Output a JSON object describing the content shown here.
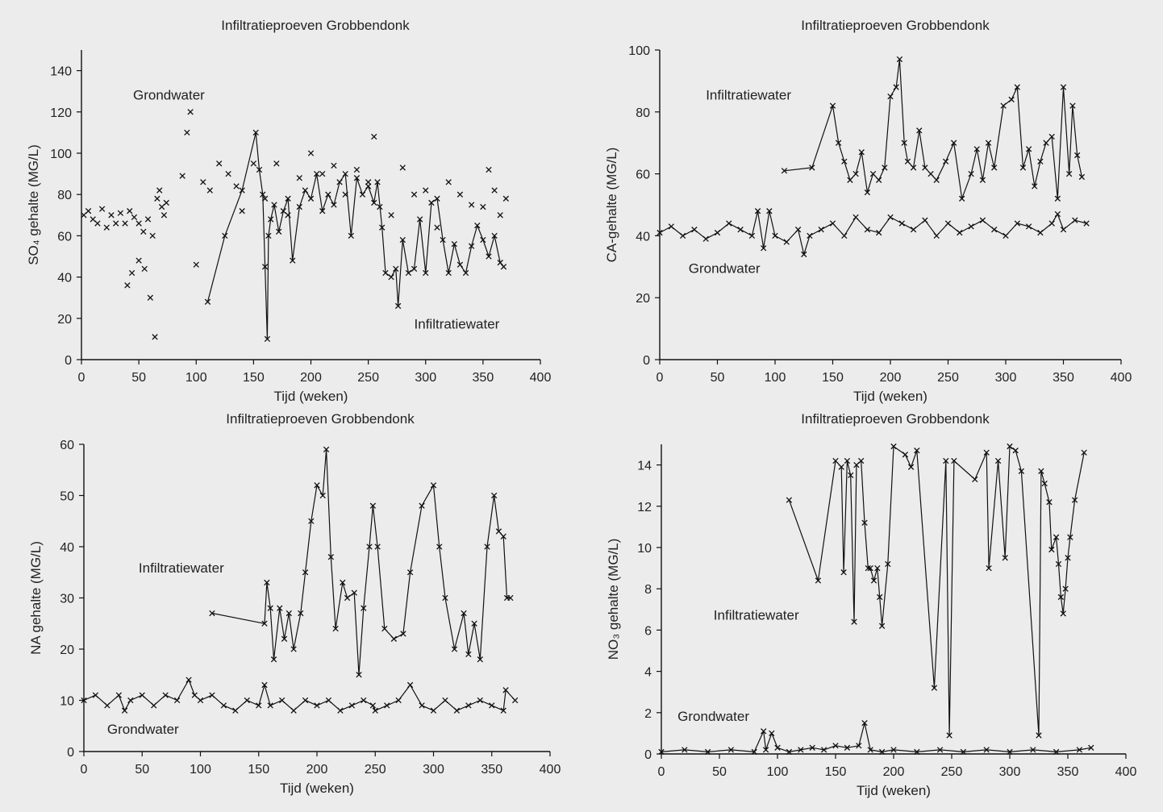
{
  "figure": {
    "background": "#ececec",
    "ink": "#111111"
  },
  "chart_data": [
    {
      "id": "so4",
      "type": "line",
      "title": "Infiltratieproeven Grobbendonk",
      "xlabel": "Tijd (weken)",
      "ylabel": "SO₄ gehalte (MG/L)",
      "xlim": [
        0,
        400
      ],
      "ylim": [
        0,
        150
      ],
      "xticks": [
        0,
        50,
        100,
        150,
        200,
        250,
        300,
        350,
        400
      ],
      "yticks": [
        0,
        20,
        40,
        60,
        80,
        100,
        120,
        140
      ],
      "grid": false,
      "annotations": [
        {
          "text": "Grondwater",
          "x": 45,
          "y": 126
        },
        {
          "text": "Infiltratiewater",
          "x": 290,
          "y": 15
        }
      ],
      "series": [
        {
          "label": "Grondwater",
          "style": "markers",
          "x": [
            2,
            6,
            10,
            14,
            18,
            22,
            26,
            30,
            34,
            38,
            42,
            46,
            50,
            54,
            58,
            62,
            66,
            70,
            74,
            40,
            44,
            50,
            55,
            60,
            64,
            68,
            72,
            88,
            92,
            95,
            100,
            106,
            112,
            120,
            128,
            135,
            140,
            150,
            160,
            170,
            180,
            190,
            200,
            210,
            220,
            230,
            240,
            250,
            255,
            260,
            270,
            280,
            290,
            300,
            310,
            320,
            330,
            340,
            350,
            355,
            360,
            365,
            370
          ],
          "y": [
            70,
            72,
            68,
            66,
            73,
            64,
            70,
            66,
            71,
            66,
            72,
            69,
            66,
            62,
            68,
            60,
            78,
            74,
            76,
            36,
            42,
            48,
            44,
            30,
            11,
            82,
            70,
            89,
            110,
            120,
            46,
            86,
            82,
            95,
            90,
            84,
            72,
            95,
            78,
            95,
            70,
            88,
            100,
            90,
            94,
            80,
            92,
            86,
            108,
            74,
            70,
            93,
            80,
            82,
            64,
            86,
            80,
            75,
            74,
            92,
            82,
            70,
            78
          ]
        },
        {
          "label": "Infiltratiewater",
          "style": "line",
          "x": [
            110,
            125,
            140,
            152,
            155,
            158,
            160,
            162,
            163,
            165,
            168,
            172,
            176,
            180,
            184,
            190,
            195,
            200,
            205,
            210,
            215,
            220,
            225,
            230,
            235,
            240,
            245,
            250,
            255,
            258,
            262,
            265,
            270,
            274,
            276,
            280,
            285,
            290,
            295,
            300,
            305,
            310,
            315,
            320,
            325,
            330,
            335,
            340,
            345,
            350,
            355,
            360,
            365,
            368
          ],
          "y": [
            28,
            60,
            82,
            110,
            92,
            80,
            45,
            10,
            60,
            68,
            75,
            62,
            72,
            78,
            48,
            74,
            82,
            78,
            90,
            72,
            80,
            75,
            86,
            90,
            60,
            88,
            80,
            84,
            76,
            86,
            64,
            42,
            40,
            44,
            26,
            58,
            42,
            44,
            68,
            42,
            76,
            78,
            58,
            42,
            56,
            46,
            42,
            55,
            65,
            58,
            50,
            60,
            47,
            45
          ]
        }
      ]
    },
    {
      "id": "ca",
      "type": "line",
      "title": "Infiltratieproeven Grobbendonk",
      "xlabel": "Tijd (weken)",
      "ylabel": "CA-gehalte (MG/L)",
      "xlim": [
        0,
        400
      ],
      "ylim": [
        0,
        100
      ],
      "xticks": [
        0,
        50,
        100,
        150,
        200,
        250,
        300,
        350,
        400
      ],
      "yticks": [
        0,
        20,
        40,
        60,
        80,
        100
      ],
      "grid": false,
      "annotations": [
        {
          "text": "Infiltratiewater",
          "x": 40,
          "y": 84
        },
        {
          "text": "Grondwater",
          "x": 25,
          "y": 28
        }
      ],
      "series": [
        {
          "label": "Infiltratiewater",
          "style": "line",
          "x": [
            108,
            132,
            150,
            155,
            160,
            165,
            170,
            175,
            180,
            185,
            190,
            195,
            200,
            205,
            208,
            212,
            215,
            220,
            225,
            230,
            235,
            240,
            248,
            255,
            262,
            270,
            275,
            280,
            285,
            290,
            298,
            305,
            310,
            315,
            320,
            325,
            330,
            335,
            340,
            345,
            350,
            355,
            358,
            362,
            366
          ],
          "y": [
            61,
            62,
            82,
            70,
            64,
            58,
            60,
            67,
            54,
            60,
            58,
            62,
            85,
            88,
            97,
            70,
            64,
            62,
            74,
            62,
            60,
            58,
            64,
            70,
            52,
            60,
            68,
            58,
            70,
            62,
            82,
            84,
            88,
            62,
            68,
            56,
            64,
            70,
            72,
            52,
            88,
            60,
            82,
            66,
            59
          ]
        },
        {
          "label": "Grondwater",
          "style": "line",
          "x": [
            0,
            10,
            20,
            30,
            40,
            50,
            60,
            70,
            80,
            85,
            90,
            95,
            100,
            110,
            120,
            125,
            130,
            140,
            150,
            160,
            170,
            180,
            190,
            200,
            210,
            220,
            230,
            240,
            250,
            260,
            270,
            280,
            290,
            300,
            310,
            320,
            330,
            340,
            345,
            350,
            360,
            370
          ],
          "y": [
            41,
            43,
            40,
            42,
            39,
            41,
            44,
            42,
            40,
            48,
            36,
            48,
            40,
            38,
            42,
            34,
            40,
            42,
            44,
            40,
            46,
            42,
            41,
            46,
            44,
            42,
            45,
            40,
            44,
            41,
            43,
            45,
            42,
            40,
            44,
            43,
            41,
            44,
            47,
            42,
            45,
            44
          ]
        }
      ]
    },
    {
      "id": "na",
      "type": "line",
      "title": "Infiltratieproeven Grobbendonk",
      "xlabel": "Tijd (weken)",
      "ylabel": "NA gehalte (MG/L)",
      "xlim": [
        0,
        400
      ],
      "ylim": [
        0,
        60
      ],
      "xticks": [
        0,
        50,
        100,
        150,
        200,
        250,
        300,
        350,
        400
      ],
      "yticks": [
        0,
        10,
        20,
        30,
        40,
        50,
        60
      ],
      "grid": false,
      "annotations": [
        {
          "text": "Infiltratiewater",
          "x": 47,
          "y": 35
        },
        {
          "text": "Grondwater",
          "x": 20,
          "y": 3.5
        }
      ],
      "series": [
        {
          "label": "Infiltratiewater",
          "style": "line",
          "x": [
            110,
            155,
            157,
            160,
            163,
            168,
            172,
            176,
            180,
            186,
            190,
            195,
            200,
            205,
            208,
            212,
            216,
            222,
            226,
            232,
            236,
            240,
            245,
            248,
            252,
            258,
            266,
            274,
            280,
            290,
            300,
            305,
            310,
            318,
            326,
            330,
            335,
            340,
            346,
            352,
            356,
            360,
            363,
            366
          ],
          "y": [
            27,
            25,
            33,
            28,
            18,
            28,
            22,
            27,
            20,
            27,
            35,
            45,
            52,
            50,
            59,
            38,
            24,
            33,
            30,
            31,
            15,
            28,
            40,
            48,
            40,
            24,
            22,
            23,
            35,
            48,
            52,
            40,
            30,
            20,
            27,
            19,
            25,
            18,
            40,
            50,
            43,
            42,
            30,
            30
          ]
        },
        {
          "label": "Grondwater",
          "style": "line",
          "x": [
            0,
            10,
            20,
            30,
            35,
            40,
            50,
            60,
            70,
            80,
            90,
            95,
            100,
            110,
            120,
            130,
            140,
            150,
            155,
            160,
            170,
            180,
            190,
            200,
            210,
            220,
            230,
            240,
            248,
            250,
            260,
            270,
            280,
            290,
            300,
            310,
            320,
            330,
            340,
            350,
            360,
            362,
            370
          ],
          "y": [
            10,
            11,
            9,
            11,
            8,
            10,
            11,
            9,
            11,
            10,
            14,
            11,
            10,
            11,
            9,
            8,
            10,
            9,
            13,
            9,
            10,
            8,
            10,
            9,
            10,
            8,
            9,
            10,
            9,
            8,
            9,
            10,
            13,
            9,
            8,
            10,
            8,
            9,
            10,
            9,
            8,
            12,
            10
          ]
        }
      ]
    },
    {
      "id": "no3",
      "type": "line",
      "title": "Infiltratieproeven Grobbendonk",
      "xlabel": "Tijd (weken)",
      "ylabel": "NO₃ gehalte (MG/L)",
      "xlim": [
        0,
        400
      ],
      "ylim": [
        0,
        15
      ],
      "xticks": [
        0,
        50,
        100,
        150,
        200,
        250,
        300,
        350,
        400
      ],
      "yticks": [
        0,
        2,
        4,
        6,
        8,
        10,
        12,
        14
      ],
      "grid": false,
      "annotations": [
        {
          "text": "Infiltratiewater",
          "x": 45,
          "y": 6.5
        },
        {
          "text": "Grondwater",
          "x": 14,
          "y": 1.6
        }
      ],
      "series": [
        {
          "label": "Infiltratiewater",
          "style": "line",
          "x": [
            110,
            135,
            150,
            155,
            157,
            160,
            163,
            166,
            168,
            172,
            175,
            178,
            180,
            183,
            186,
            188,
            190,
            195,
            200,
            210,
            215,
            220,
            235,
            245,
            248,
            252,
            270,
            280,
            282,
            290,
            296,
            300,
            305,
            310,
            325,
            327,
            330,
            334,
            336,
            340,
            342,
            344,
            346,
            348,
            350,
            352,
            356,
            364
          ],
          "y": [
            12.3,
            8.4,
            14.2,
            13.9,
            8.8,
            14.2,
            13.5,
            6.4,
            14.0,
            14.2,
            11.2,
            9.0,
            9.0,
            8.4,
            9.0,
            7.6,
            6.2,
            9.2,
            14.9,
            14.5,
            13.9,
            14.7,
            3.2,
            14.2,
            0.9,
            14.2,
            13.3,
            14.6,
            9.0,
            14.2,
            9.5,
            14.9,
            14.7,
            13.7,
            0.9,
            13.7,
            13.1,
            12.2,
            9.9,
            10.5,
            9.2,
            7.6,
            6.8,
            8.0,
            9.5,
            10.5,
            12.3,
            14.6
          ]
        },
        {
          "label": "Grondwater",
          "style": "line",
          "x": [
            0,
            20,
            40,
            60,
            80,
            88,
            90,
            95,
            100,
            110,
            120,
            130,
            140,
            150,
            160,
            170,
            175,
            180,
            190,
            200,
            220,
            240,
            260,
            280,
            300,
            320,
            340,
            360,
            370
          ],
          "y": [
            0.1,
            0.2,
            0.1,
            0.2,
            0.1,
            1.1,
            0.2,
            1.0,
            0.3,
            0.1,
            0.2,
            0.3,
            0.2,
            0.4,
            0.3,
            0.4,
            1.5,
            0.2,
            0.1,
            0.2,
            0.1,
            0.2,
            0.1,
            0.2,
            0.1,
            0.2,
            0.1,
            0.2,
            0.3
          ]
        }
      ]
    }
  ]
}
